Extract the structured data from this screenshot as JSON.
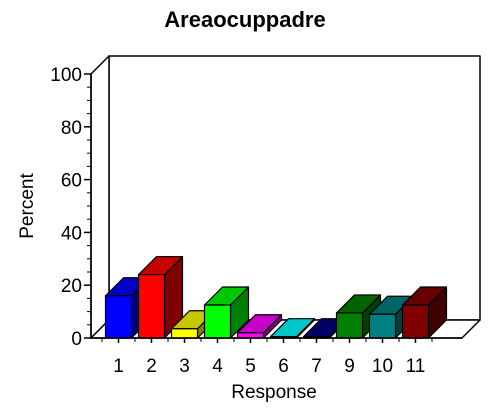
{
  "chart_data": {
    "type": "bar",
    "title": "Areaocuppadre",
    "xlabel": "Response",
    "ylabel": "Percent",
    "ylim": [
      0,
      100
    ],
    "yticks": [
      "0",
      "20",
      "40",
      "60",
      "80",
      "100"
    ],
    "grid": false,
    "categories": [
      "1",
      "2",
      "3",
      "4",
      "5",
      "6",
      "7",
      "9",
      "10",
      "11"
    ],
    "values": [
      16,
      24,
      3.5,
      12.5,
      2,
      0.5,
      0.5,
      9.5,
      9,
      12.5
    ],
    "colors": [
      "#0000ff",
      "#ff0000",
      "#ffff00",
      "#00ff00",
      "#ff00ff",
      "#00ffff",
      "#000080",
      "#008000",
      "#008080",
      "#800000"
    ]
  }
}
